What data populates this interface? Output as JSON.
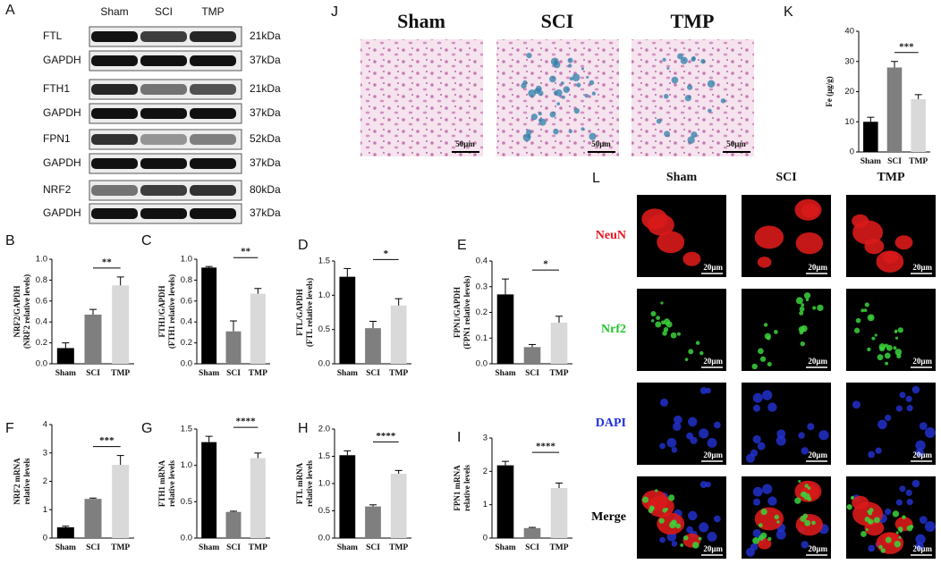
{
  "chart_data": [
    {
      "type": "bar",
      "panel": "B",
      "ylabel": [
        "NRF2/GAPDH",
        "(NRF2 relative levels)"
      ],
      "categories": [
        "Sham",
        "SCI",
        "TMP"
      ],
      "values": [
        0.15,
        0.47,
        0.75
      ],
      "errors": [
        0.05,
        0.05,
        0.08
      ],
      "colors": [
        "#000000",
        "#7f7f7f",
        "#d9d9d9"
      ],
      "ylim": [
        0,
        1
      ],
      "yticks": [
        {
          "value": 0,
          "label": "0.0"
        },
        0.2,
        0.4,
        0.6,
        0.8,
        {
          "value": 1,
          "label": "1.0"
        }
      ],
      "significance": "**"
    },
    {
      "type": "bar",
      "panel": "C",
      "ylabel": [
        "FTH1/GAPDH",
        "(FTH1 relative levels)"
      ],
      "categories": [
        "Sham",
        "SCI",
        "TMP"
      ],
      "values": [
        0.92,
        0.31,
        0.67
      ],
      "errors": [
        0.01,
        0.1,
        0.05
      ],
      "colors": [
        "#000000",
        "#7f7f7f",
        "#d9d9d9"
      ],
      "ylim": [
        0,
        1
      ],
      "yticks": [
        {
          "value": 0,
          "label": "0.0"
        },
        0.2,
        0.4,
        0.6,
        0.8,
        {
          "value": 1,
          "label": "1.0"
        }
      ],
      "significance": "**"
    },
    {
      "type": "bar",
      "panel": "D",
      "ylabel": [
        "FTL/GAPDH",
        "(FTL relative levels)"
      ],
      "categories": [
        "Sham",
        "SCI",
        "TMP"
      ],
      "values": [
        1.27,
        0.52,
        0.85
      ],
      "errors": [
        0.12,
        0.1,
        0.1
      ],
      "colors": [
        "#000000",
        "#7f7f7f",
        "#d9d9d9"
      ],
      "ylim": [
        0,
        1.5
      ],
      "yticks": [
        {
          "value": 0,
          "label": "0.0"
        },
        0.5,
        {
          "value": 1,
          "label": "1.0"
        },
        1.5
      ],
      "significance": "*"
    },
    {
      "type": "bar",
      "panel": "E",
      "ylabel": [
        "FPN1/GAPDH",
        "(FPN1 relative levels)"
      ],
      "categories": [
        "Sham",
        "SCI",
        "TMP"
      ],
      "values": [
        0.27,
        0.065,
        0.16
      ],
      "errors": [
        0.06,
        0.01,
        0.025
      ],
      "colors": [
        "#000000",
        "#7f7f7f",
        "#d9d9d9"
      ],
      "ylim": [
        0,
        0.4
      ],
      "yticks": [
        {
          "value": 0,
          "label": "0.0"
        },
        0.1,
        0.2,
        0.3,
        0.4
      ],
      "significance": "*"
    },
    {
      "type": "bar",
      "panel": "F",
      "ylabel": [
        "NRF2 mRNA",
        "relative levels"
      ],
      "categories": [
        "Sham",
        "SCI",
        "TMP"
      ],
      "values": [
        0.38,
        1.38,
        2.58
      ],
      "errors": [
        0.04,
        0.03,
        0.33
      ],
      "colors": [
        "#000000",
        "#7f7f7f",
        "#d9d9d9"
      ],
      "ylim": [
        0,
        4
      ],
      "yticks": [
        0,
        1,
        2,
        3,
        4
      ],
      "significance": "***"
    },
    {
      "type": "bar",
      "panel": "G",
      "ylabel": [
        "FTH1 mRNA",
        "relative levels"
      ],
      "categories": [
        "Sham",
        "SCI",
        "TMP"
      ],
      "values": [
        1.32,
        0.36,
        1.1
      ],
      "errors": [
        0.08,
        0.01,
        0.07
      ],
      "colors": [
        "#000000",
        "#7f7f7f",
        "#d9d9d9"
      ],
      "ylim": [
        0,
        1.5
      ],
      "yticks": [
        {
          "value": 0,
          "label": "0.0"
        },
        0.5,
        {
          "value": 1,
          "label": "1.0"
        },
        1.5
      ],
      "significance": "****"
    },
    {
      "type": "bar",
      "panel": "H",
      "ylabel": [
        "FTL mRNA",
        "relative levels"
      ],
      "categories": [
        "Sham",
        "SCI",
        "TMP"
      ],
      "values": [
        1.52,
        0.58,
        1.18
      ],
      "errors": [
        0.08,
        0.03,
        0.06
      ],
      "colors": [
        "#000000",
        "#7f7f7f",
        "#d9d9d9"
      ],
      "ylim": [
        0,
        2
      ],
      "yticks": [
        {
          "value": 0,
          "label": "0.0"
        },
        0.5,
        {
          "value": 1,
          "label": "1.0"
        },
        1.5,
        {
          "value": 2,
          "label": "2.0"
        }
      ],
      "significance": "****"
    },
    {
      "type": "bar",
      "panel": "I",
      "ylabel": [
        "FPN1 mRNA",
        "relative levels"
      ],
      "categories": [
        "Sham",
        "SCI",
        "TMP"
      ],
      "values": [
        2.18,
        0.3,
        1.5
      ],
      "errors": [
        0.12,
        0.02,
        0.15
      ],
      "colors": [
        "#000000",
        "#7f7f7f",
        "#d9d9d9"
      ],
      "ylim": [
        0,
        3
      ],
      "yticks": [
        0,
        1,
        2,
        3
      ],
      "significance": "****"
    },
    {
      "type": "bar",
      "panel": "K",
      "ylabel": [
        "Fe (μg/g)"
      ],
      "categories": [
        "Sham",
        "SCI",
        "TMP"
      ],
      "values": [
        10,
        28,
        17.5
      ],
      "errors": [
        1.5,
        2,
        1.5
      ],
      "colors": [
        "#000000",
        "#7f7f7f",
        "#d9d9d9"
      ],
      "ylim": [
        0,
        40
      ],
      "yticks": [
        0,
        10,
        20,
        30,
        40
      ],
      "significance": "***"
    }
  ],
  "western_blot": {
    "panel": "A",
    "lanes": [
      "Sham",
      "SCI",
      "TMP"
    ],
    "rows": [
      {
        "label": "FTL",
        "size": "21kDa"
      },
      {
        "label": "GAPDH",
        "size": "37kDa"
      },
      {
        "label": "FTH1",
        "size": "21kDa"
      },
      {
        "label": "GAPDH",
        "size": "37kDa"
      },
      {
        "label": "FPN1",
        "size": "52kDa"
      },
      {
        "label": "GAPDH",
        "size": "37kDa"
      },
      {
        "label": "NRF2",
        "size": "80kDa"
      },
      {
        "label": "GAPDH",
        "size": "37kDa"
      }
    ]
  },
  "histology": {
    "panel": "J",
    "groups": [
      "Sham",
      "SCI",
      "TMP"
    ],
    "scale_bar": "50μm"
  },
  "fluorescence": {
    "panel": "L",
    "groups": [
      "Sham",
      "SCI",
      "TMP"
    ],
    "channels": [
      "NeuN",
      "Nrf2",
      "DAPI",
      "Merge"
    ],
    "scale_bar": "20μm"
  }
}
